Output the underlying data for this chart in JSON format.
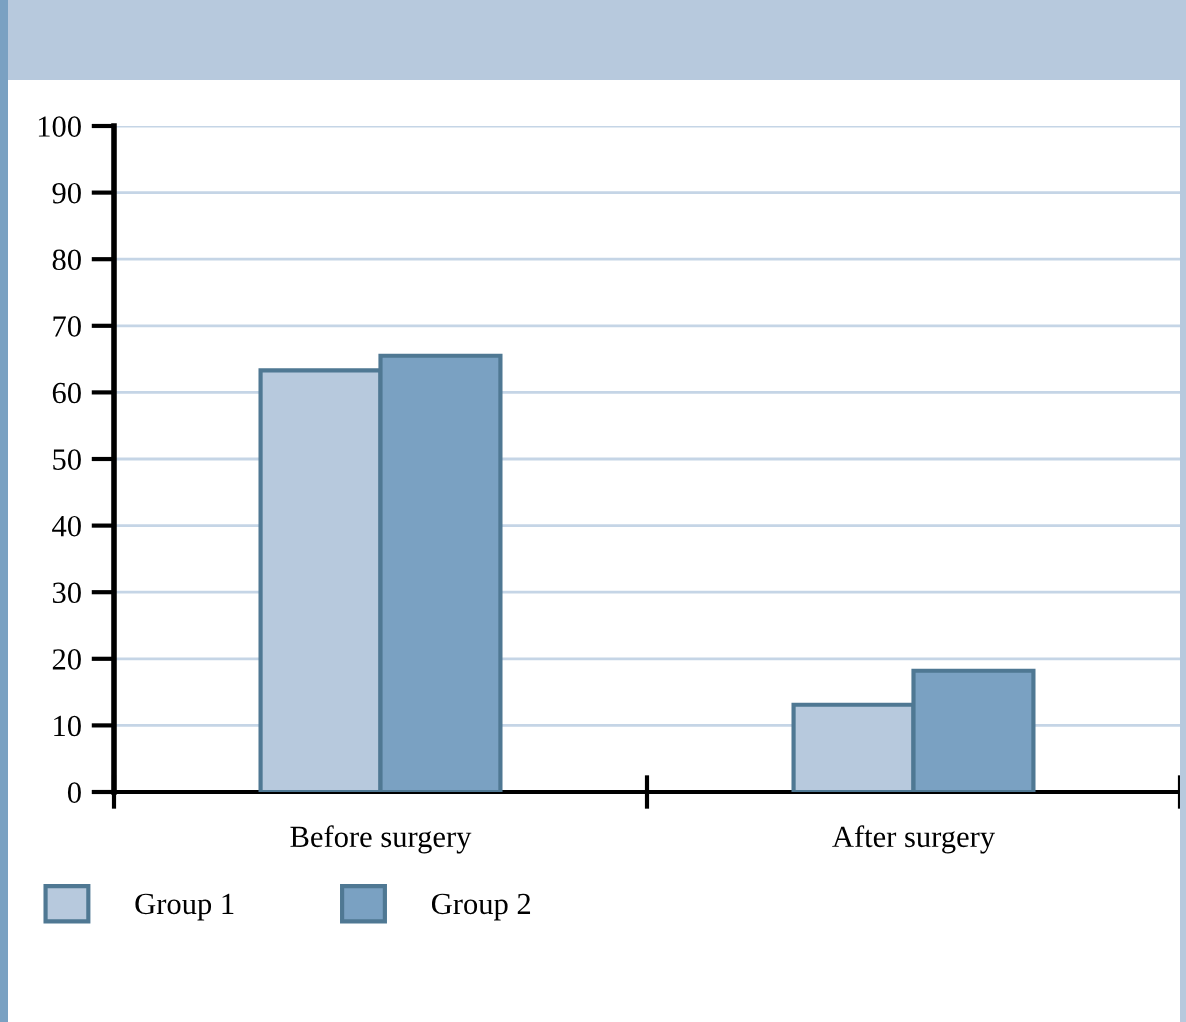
{
  "chart_data": {
    "type": "bar",
    "categories": [
      "Before surgery",
      "After surgery"
    ],
    "series": [
      {
        "name": "Group 1",
        "color": "#b7c9dd",
        "values": [
          63.3,
          13.1
        ]
      },
      {
        "name": "Group 2",
        "color": "#7aa1c2",
        "values": [
          65.5,
          18.2
        ]
      }
    ],
    "ylim": [
      0,
      100
    ],
    "yticks": [
      0,
      10,
      20,
      30,
      40,
      50,
      60,
      70,
      80,
      90,
      100
    ],
    "grid": "y",
    "legend": "bottom left"
  }
}
